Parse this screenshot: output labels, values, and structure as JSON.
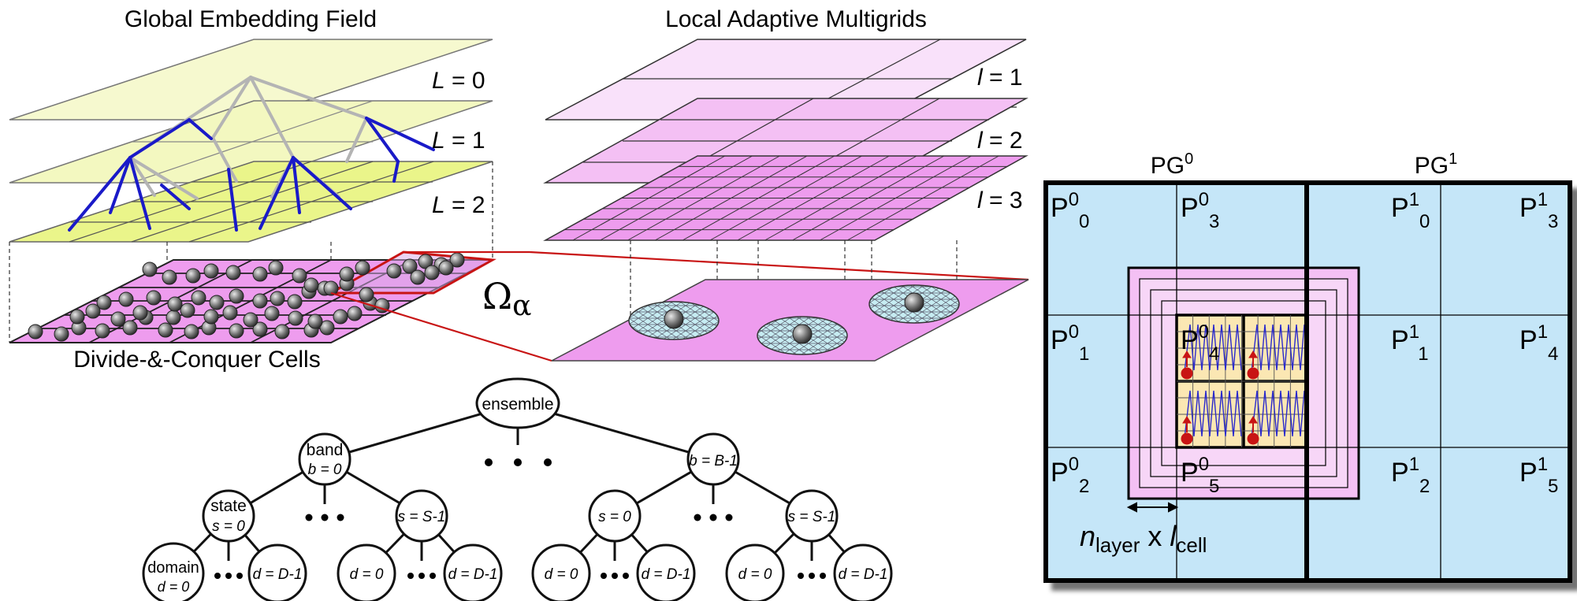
{
  "top_left": {
    "title": "Global Embedding Field",
    "levels": [
      {
        "var": "L",
        "eq": " = 0"
      },
      {
        "var": "L",
        "eq": " = 1"
      },
      {
        "var": "L",
        "eq": " = 2"
      }
    ],
    "bottom_label": "Divide-&-Conquer Cells",
    "omega_symbol": "Ω",
    "omega_sub": "α"
  },
  "top_middle": {
    "title": "Local Adaptive Multigrids",
    "levels": [
      {
        "var": "l",
        "eq": " = 1"
      },
      {
        "var": "l",
        "eq": " = 2"
      },
      {
        "var": "l",
        "eq": " = 3"
      }
    ]
  },
  "tree": {
    "root": "ensemble",
    "band_top": "band",
    "band_bottom": "b = 0",
    "band_last": "b = B-1",
    "state_top": "state",
    "state_bottom": "s = 0",
    "state_s0": "s = 0",
    "state_last": "s = S-1",
    "domain_top": "domain",
    "domain_bottom": "d = 0",
    "d0": "d = 0",
    "d_last": "d = D-1"
  },
  "right": {
    "pg0_base": "PG",
    "pg0_sup": "0",
    "pg1_base": "PG",
    "pg1_sup": "1",
    "p_base": "P",
    "cells": [
      {
        "sup": "0",
        "sub": "0"
      },
      {
        "sup": "0",
        "sub": "3"
      },
      {
        "sup": "1",
        "sub": "0"
      },
      {
        "sup": "1",
        "sub": "3"
      },
      {
        "sup": "0",
        "sub": "1"
      },
      {
        "sup": "0",
        "sub": "4"
      },
      {
        "sup": "1",
        "sub": "1"
      },
      {
        "sup": "1",
        "sub": "4"
      },
      {
        "sup": "0",
        "sub": "2"
      },
      {
        "sup": "0",
        "sub": "5"
      },
      {
        "sup": "1",
        "sub": "2"
      },
      {
        "sup": "1",
        "sub": "5"
      }
    ],
    "formula_n": "n",
    "formula_n_sub": "layer",
    "formula_x": " x ",
    "formula_l": "l",
    "formula_l_sub": "cell"
  },
  "colors": {
    "yellow_plane": "#f4f8c8",
    "yellow_plane_dark": "#eaf58a",
    "pink_plane": "#f7d6f7",
    "pink_plane_dark": "#ee9cee",
    "tree_blue": "#1a1ac8",
    "tree_grey": "#b4b4b4",
    "light_blue": "#c5e6f8",
    "beige": "#fbe7b3",
    "red": "#c81414"
  }
}
